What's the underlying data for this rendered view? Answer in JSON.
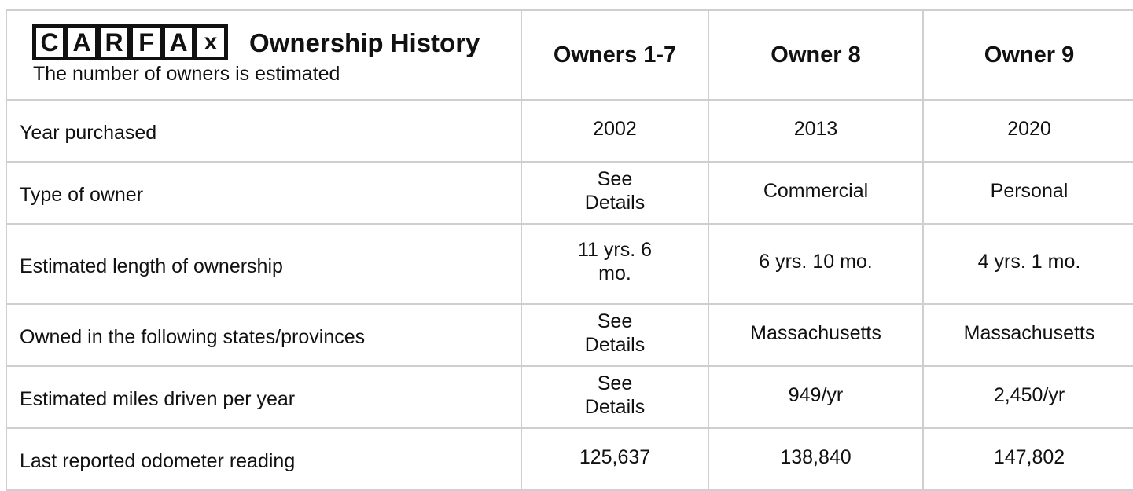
{
  "header": {
    "logo": [
      "C",
      "A",
      "R",
      "F",
      "A",
      "x"
    ],
    "title": "Ownership History",
    "subtitle": "The number of owners is estimated"
  },
  "table": {
    "columns": [
      "Owners 1-7",
      "Owner 8",
      "Owner 9"
    ],
    "rows": [
      {
        "label": "Year purchased",
        "values": [
          "2002",
          "2013",
          "2020"
        ]
      },
      {
        "label": "Type of owner",
        "values": [
          "See Details",
          "Commercial",
          "Personal"
        ]
      },
      {
        "label": "Estimated length of ownership",
        "values": [
          "11 yrs. 6 mo.",
          "6 yrs. 10 mo.",
          "4 yrs. 1 mo."
        ]
      },
      {
        "label": "Owned in the following states/provinces",
        "values": [
          "See Details",
          "Massachusetts",
          "Massachusetts"
        ]
      },
      {
        "label": "Estimated miles driven per year",
        "values": [
          "See Details",
          "949/yr",
          "2,450/yr"
        ]
      },
      {
        "label": "Last reported odometer reading",
        "values": [
          "125,637",
          "138,840",
          "147,802"
        ]
      }
    ]
  }
}
